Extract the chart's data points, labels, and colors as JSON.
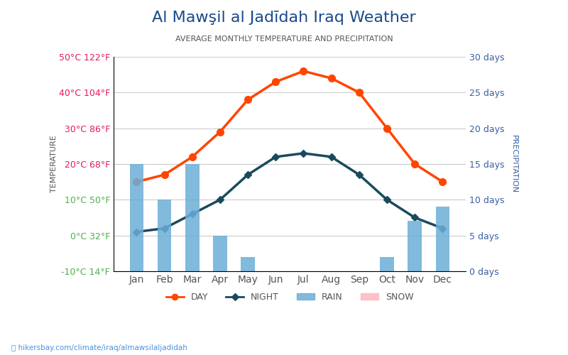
{
  "title": "Al Mawşil al Jadīdah Iraq Weather",
  "subtitle": "AVERAGE MONTHLY TEMPERATURE AND PRECIPITATION",
  "months": [
    "Jan",
    "Feb",
    "Mar",
    "Apr",
    "May",
    "Jun",
    "Jul",
    "Aug",
    "Sep",
    "Oct",
    "Nov",
    "Dec"
  ],
  "day_temp": [
    15,
    17,
    22,
    29,
    38,
    43,
    46,
    44,
    40,
    30,
    20,
    15
  ],
  "night_temp": [
    1,
    2,
    6,
    10,
    17,
    22,
    23,
    22,
    17,
    10,
    5,
    2
  ],
  "rain_days": [
    15,
    10,
    15,
    5,
    2,
    0,
    0,
    0,
    0,
    2,
    7,
    9
  ],
  "snow_days": [
    0,
    0,
    0,
    0,
    0,
    0,
    0,
    0,
    0,
    0,
    0,
    0
  ],
  "ylim_temp": [
    -10,
    50
  ],
  "ylim_precip": [
    0,
    30
  ],
  "temp_ticks": [
    -10,
    0,
    10,
    20,
    30,
    40,
    50
  ],
  "temp_labels_left": [
    "-10°C 14°F",
    "0°C 32°F",
    "10°C 50°F",
    "20°C 68°F",
    "30°C 86°F",
    "40°C 104°F",
    "50°C 122°F"
  ],
  "precip_ticks": [
    0,
    5,
    10,
    15,
    20,
    25,
    30
  ],
  "precip_labels_right": [
    "0 days",
    "5 days",
    "10 days",
    "15 days",
    "20 days",
    "25 days",
    "30 days"
  ],
  "day_color": "#ff4500",
  "night_color": "#1a4a5c",
  "rain_color": "#6baed6",
  "background_color": "#ffffff",
  "title_color": "#1a4a8a",
  "subtitle_color": "#555555",
  "left_label_color_hot": "#e8175d",
  "left_label_color_cold": "#4daf4a",
  "right_label_color": "#3a5fa0",
  "url_text": "hikersbay.com/climate/iraq/almawsilaljadidah",
  "xlabel_color": "#555555",
  "axis_label_left": "TEMPERATURE",
  "axis_label_right": "PRECIPITATION"
}
